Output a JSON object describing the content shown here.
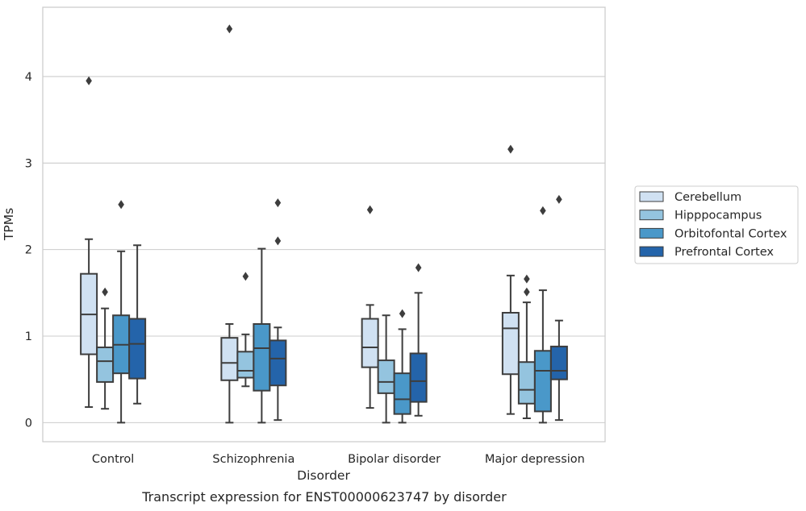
{
  "chart_data": {
    "type": "box",
    "title": "Transcript expression for ENST00000623747 by disorder",
    "xlabel": "Disorder",
    "ylabel": "TPMs",
    "ylim": [
      -0.22,
      4.8
    ],
    "yticks": [
      "0",
      "1",
      "2",
      "3",
      "4"
    ],
    "grid": "horizontal",
    "legend_position": "right",
    "categories": [
      "Control",
      "Schizophrenia",
      "Bipolar disorder",
      "Major depression"
    ],
    "series": [
      {
        "name": "Cerebellum",
        "color": "#d0e1f2",
        "boxes": [
          {
            "whisker_low": 0.18,
            "q1": 0.79,
            "median": 1.25,
            "q3": 1.72,
            "whisker_high": 2.12,
            "outliers": [
              3.95
            ]
          },
          {
            "whisker_low": 0.0,
            "q1": 0.49,
            "median": 0.69,
            "q3": 0.98,
            "whisker_high": 1.14,
            "outliers": [
              4.55
            ]
          },
          {
            "whisker_low": 0.17,
            "q1": 0.64,
            "median": 0.87,
            "q3": 1.2,
            "whisker_high": 1.36,
            "outliers": [
              2.46
            ]
          },
          {
            "whisker_low": 0.1,
            "q1": 0.56,
            "median": 1.09,
            "q3": 1.27,
            "whisker_high": 1.7,
            "outliers": [
              3.16
            ]
          }
        ]
      },
      {
        "name": "Hipppocampus",
        "color": "#94c4df",
        "boxes": [
          {
            "whisker_low": 0.16,
            "q1": 0.47,
            "median": 0.71,
            "q3": 0.87,
            "whisker_high": 1.32,
            "outliers": [
              1.51
            ]
          },
          {
            "whisker_low": 0.42,
            "q1": 0.52,
            "median": 0.6,
            "q3": 0.82,
            "whisker_high": 1.02,
            "outliers": [
              1.69
            ]
          },
          {
            "whisker_low": 0.0,
            "q1": 0.34,
            "median": 0.47,
            "q3": 0.72,
            "whisker_high": 1.24,
            "outliers": []
          },
          {
            "whisker_low": 0.05,
            "q1": 0.22,
            "median": 0.38,
            "q3": 0.7,
            "whisker_high": 1.39,
            "outliers": [
              1.51,
              1.66
            ]
          }
        ]
      },
      {
        "name": "Orbitofontal Cortex",
        "color": "#4a98c9",
        "boxes": [
          {
            "whisker_low": 0.0,
            "q1": 0.57,
            "median": 0.9,
            "q3": 1.24,
            "whisker_high": 1.98,
            "outliers": [
              2.52
            ]
          },
          {
            "whisker_low": 0.0,
            "q1": 0.37,
            "median": 0.86,
            "q3": 1.14,
            "whisker_high": 2.01,
            "outliers": []
          },
          {
            "whisker_low": 0.0,
            "q1": 0.1,
            "median": 0.27,
            "q3": 0.57,
            "whisker_high": 1.08,
            "outliers": [
              1.26
            ]
          },
          {
            "whisker_low": 0.0,
            "q1": 0.13,
            "median": 0.6,
            "q3": 0.83,
            "whisker_high": 1.53,
            "outliers": [
              2.45
            ]
          }
        ]
      },
      {
        "name": "Prefrontal Cortex",
        "color": "#2464aa",
        "boxes": [
          {
            "whisker_low": 0.22,
            "q1": 0.51,
            "median": 0.91,
            "q3": 1.2,
            "whisker_high": 2.05,
            "outliers": []
          },
          {
            "whisker_low": 0.03,
            "q1": 0.43,
            "median": 0.74,
            "q3": 0.95,
            "whisker_high": 1.1,
            "outliers": [
              2.1,
              2.54
            ]
          },
          {
            "whisker_low": 0.08,
            "q1": 0.24,
            "median": 0.48,
            "q3": 0.8,
            "whisker_high": 1.5,
            "outliers": [
              1.79
            ]
          },
          {
            "whisker_low": 0.03,
            "q1": 0.5,
            "median": 0.6,
            "q3": 0.88,
            "whisker_high": 1.18,
            "outliers": [
              2.58
            ]
          }
        ]
      }
    ]
  }
}
